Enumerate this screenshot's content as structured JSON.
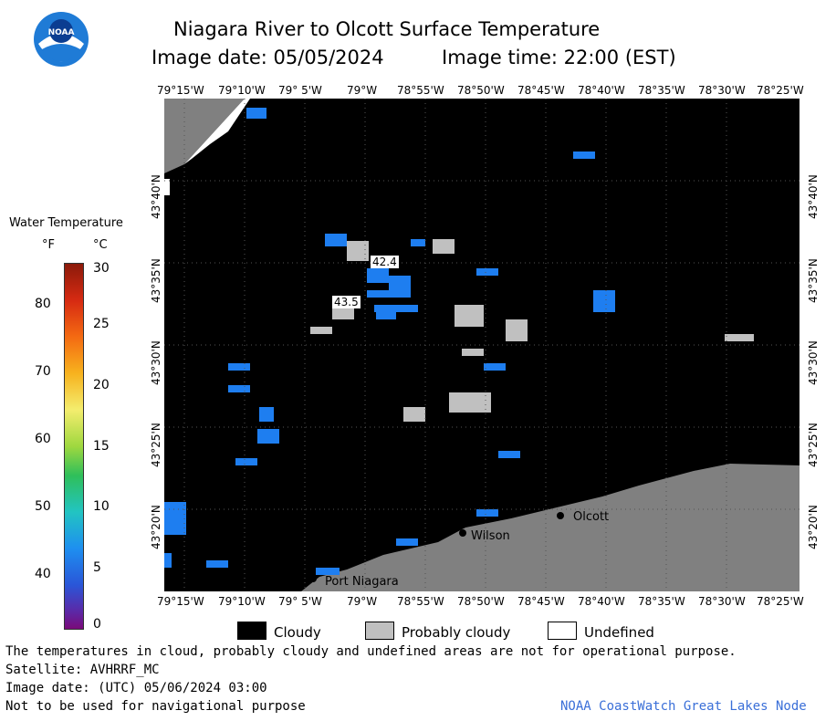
{
  "logo": {
    "text": "NOAA"
  },
  "header": {
    "title": "Niagara River to Olcott Surface Temperature",
    "image_date": "Image date: 05/05/2024",
    "image_time": "Image time: 22:00 (EST)"
  },
  "axes": {
    "lon_labels": [
      "79°15'W",
      "79°10'W",
      "79° 5'W",
      "79°W",
      "78°55'W",
      "78°50'W",
      "78°45'W",
      "78°40'W",
      "78°35'W",
      "78°30'W",
      "78°25'W"
    ],
    "lat_labels": [
      "43°40'N",
      "43°35'N",
      "43°30'N",
      "43°25'N",
      "43°20'N"
    ]
  },
  "colorbar": {
    "title": "Water Temperature",
    "unit_f": "°F",
    "unit_c": "°C",
    "f_ticks": [
      "80",
      "70",
      "60",
      "50",
      "40"
    ],
    "c_ticks": [
      "30",
      "25",
      "20",
      "15",
      "10",
      "5",
      "0"
    ]
  },
  "map": {
    "places": [
      {
        "name": "Olcott"
      },
      {
        "name": "Wilson"
      },
      {
        "name": "Port Niagara"
      }
    ],
    "temps": [
      "42.4",
      "43.5"
    ]
  },
  "legend": {
    "cloudy": "Cloudy",
    "probably_cloudy": "Probably cloudy",
    "undefined": "Undefined"
  },
  "footer": {
    "note": "The temperatures in cloud, probably cloudy and undefined areas are not for operational purpose.",
    "satellite": "Satellite: AVHRRF_MC",
    "utc_date": "Image date: (UTC) 05/06/2024  03:00",
    "nav": "Not to be used for navigational purpose",
    "credit": "NOAA CoastWatch Great Lakes Node"
  },
  "colors": {
    "cloudy": "#000000",
    "probably_cloudy": "#c0c0c0",
    "land": "#808080",
    "water_temp": "#1e7ef0"
  }
}
